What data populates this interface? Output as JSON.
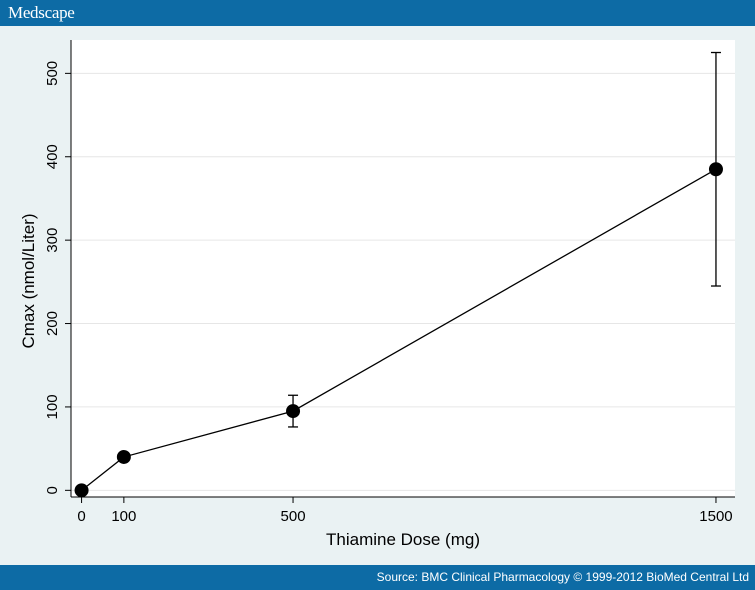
{
  "header": {
    "brand": "Medscape"
  },
  "footer": {
    "source": "Source: BMC Clinical Pharmacology © 1999-2012 BioMed Central Ltd"
  },
  "colors": {
    "bar": "#0d6ba5",
    "frame": "#eaf2f3",
    "plot_bg": "#ffffff",
    "grid": "#e6e6e6",
    "ink": "#000000"
  },
  "chart_data": {
    "type": "line",
    "title": "",
    "xlabel": "Thiamine Dose (mg)",
    "ylabel": "Cmax (nmol/Liter)",
    "xlim": [
      -25,
      1545
    ],
    "ylim": [
      -8,
      540
    ],
    "x_ticks": [
      0,
      100,
      500,
      1500
    ],
    "y_ticks": [
      0,
      100,
      200,
      300,
      400,
      500
    ],
    "grid": true,
    "legend": "none",
    "series": [
      {
        "x": [
          0,
          100,
          500,
          1500
        ],
        "y": [
          0,
          40,
          95,
          385
        ],
        "error_low": [
          0,
          36,
          76,
          245
        ],
        "error_high": [
          0,
          44,
          114,
          525
        ]
      }
    ]
  }
}
